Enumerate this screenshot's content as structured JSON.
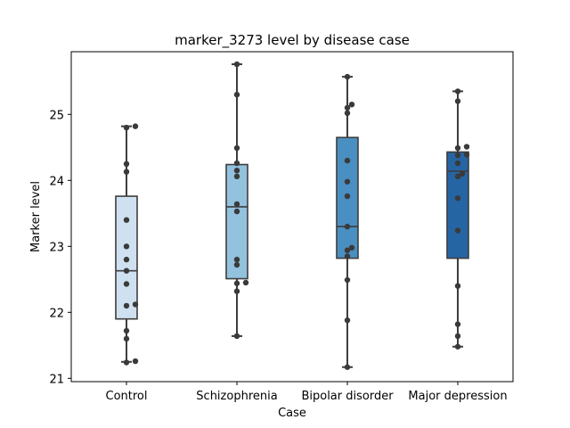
{
  "chart_data": {
    "type": "box",
    "title": "marker_3273 level by disease case",
    "xlabel": "Case",
    "ylabel": "Marker level",
    "ylim": [
      20.95,
      25.95
    ],
    "yticks": [
      21,
      22,
      23,
      24,
      25
    ],
    "grid": false,
    "categories": [
      "Control",
      "Schizophrenia",
      "Bipolar disorder",
      "Major depression"
    ],
    "colors": [
      "#cfe1f1",
      "#93c2de",
      "#4a8fc2",
      "#2665a4"
    ],
    "boxes": [
      {
        "whisker_low": 21.25,
        "q1": 21.9,
        "median": 22.63,
        "q3": 23.76,
        "whisker_high": 24.82
      },
      {
        "whisker_low": 21.64,
        "q1": 22.51,
        "median": 23.6,
        "q3": 24.24,
        "whisker_high": 25.76
      },
      {
        "whisker_low": 21.17,
        "q1": 22.82,
        "median": 23.3,
        "q3": 24.65,
        "whisker_high": 25.57
      },
      {
        "whisker_low": 21.48,
        "q1": 22.82,
        "median": 24.14,
        "q3": 24.43,
        "whisker_high": 25.35
      }
    ],
    "points": [
      [
        24.82,
        24.8,
        24.25,
        24.13,
        23.4,
        23.0,
        22.8,
        22.63,
        22.43,
        22.12,
        22.1,
        21.72,
        21.6,
        21.26,
        21.24
      ],
      [
        25.76,
        25.3,
        24.49,
        24.26,
        24.15,
        24.06,
        23.64,
        23.53,
        22.8,
        22.72,
        22.45,
        22.44,
        22.32,
        21.64
      ],
      [
        25.57,
        25.15,
        25.1,
        25.02,
        24.3,
        23.98,
        23.76,
        23.3,
        22.98,
        22.94,
        22.85,
        22.49,
        21.88,
        21.17
      ],
      [
        25.35,
        25.2,
        24.51,
        24.49,
        24.39,
        24.38,
        24.26,
        24.1,
        24.06,
        23.73,
        23.24,
        22.4,
        21.82,
        21.64,
        21.48
      ]
    ]
  }
}
